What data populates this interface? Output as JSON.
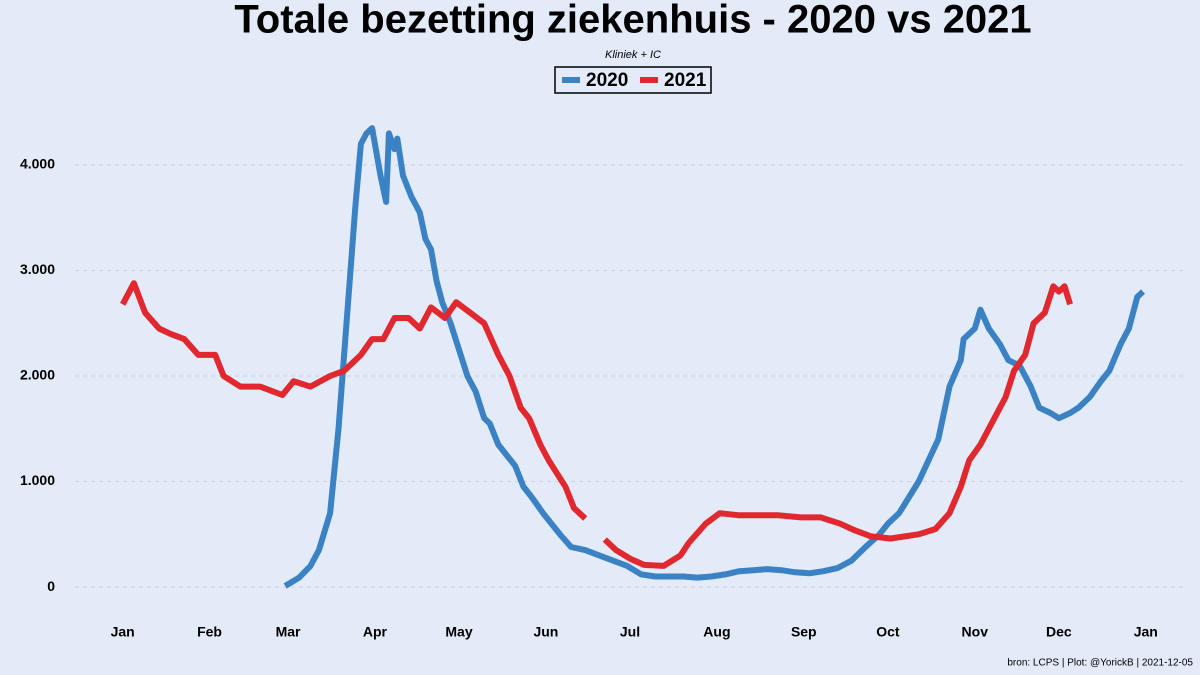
{
  "chart_data": {
    "type": "line",
    "title": "Totale bezetting ziekenhuis - 2020 vs 2021",
    "subtitle": "Kliniek + IC",
    "caption": "bron: LCPS  | Plot: @YorickB |  2021-12-05",
    "legend": "top",
    "grid": true,
    "xlim": [
      -17,
      379
    ],
    "xticks": [
      {
        "value": 0,
        "label": "Jan"
      },
      {
        "value": 31,
        "label": "Feb"
      },
      {
        "value": 59,
        "label": "Mar"
      },
      {
        "value": 90,
        "label": "Apr"
      },
      {
        "value": 120,
        "label": "May"
      },
      {
        "value": 151,
        "label": "Jun"
      },
      {
        "value": 181,
        "label": "Jul"
      },
      {
        "value": 212,
        "label": "Aug"
      },
      {
        "value": 243,
        "label": "Sep"
      },
      {
        "value": 273,
        "label": "Oct"
      },
      {
        "value": 304,
        "label": "Nov"
      },
      {
        "value": 334,
        "label": "Dec"
      },
      {
        "value": 365,
        "label": "Jan"
      }
    ],
    "ylim": [
      -300,
      4600
    ],
    "yticks": [
      0,
      {
        "value": 1000,
        "label": "1.000"
      },
      {
        "value": 2000,
        "label": "2.000"
      },
      {
        "value": 3000,
        "label": "3.000"
      },
      {
        "value": 4000,
        "label": "4.000"
      }
    ],
    "series": [
      {
        "name": "2020",
        "color": "#3b82c4",
        "x": [
          58,
          63,
          67,
          70,
          74,
          77,
          79,
          81,
          83,
          85,
          87,
          89,
          92,
          94,
          95,
          97,
          98,
          100,
          103,
          106,
          108,
          110,
          112,
          114,
          117,
          120,
          123,
          126,
          129,
          131,
          134,
          137,
          140,
          143,
          146,
          150,
          153,
          156,
          160,
          165,
          170,
          175,
          180,
          185,
          190,
          195,
          200,
          205,
          210,
          215,
          220,
          225,
          230,
          235,
          240,
          245,
          250,
          255,
          260,
          265,
          270,
          273,
          277,
          284,
          291,
          295,
          299,
          300,
          304,
          306,
          309,
          313,
          316,
          320,
          324,
          327,
          331,
          334,
          338,
          341,
          345,
          349,
          352,
          356,
          359,
          362,
          364
        ],
        "values": [
          10,
          90,
          200,
          350,
          700,
          1500,
          2200,
          2900,
          3600,
          4200,
          4300,
          4350,
          3900,
          3650,
          4300,
          4150,
          4250,
          3900,
          3700,
          3550,
          3300,
          3200,
          2900,
          2700,
          2500,
          2250,
          2000,
          1850,
          1600,
          1550,
          1350,
          1250,
          1150,
          950,
          850,
          700,
          600,
          500,
          380,
          350,
          300,
          250,
          200,
          120,
          100,
          100,
          100,
          90,
          100,
          120,
          150,
          160,
          170,
          160,
          140,
          130,
          150,
          180,
          250,
          380,
          500,
          600,
          700,
          1000,
          1400,
          1900,
          2150,
          2350,
          2450,
          2630,
          2450,
          2300,
          2150,
          2100,
          1900,
          1700,
          1650,
          1600,
          1650,
          1700,
          1800,
          1950,
          2050,
          2300,
          2450,
          2750,
          2800
        ]
      },
      {
        "name": "2021",
        "color": "#e0282e",
        "x": [
          0,
          4,
          8,
          13,
          17,
          22,
          27,
          33,
          36,
          42,
          49,
          57,
          61,
          67,
          74,
          79,
          85,
          89,
          93,
          97,
          102,
          106,
          110,
          115,
          119,
          124,
          129,
          134,
          138,
          142,
          145,
          149,
          152,
          158,
          161,
          165,
          168,
          172,
          176,
          181,
          186,
          193,
          199,
          202,
          208,
          213,
          220,
          227,
          234,
          242,
          249,
          256,
          261,
          267,
          274,
          279,
          284,
          290,
          295,
          299,
          302,
          306,
          311,
          315,
          318,
          322,
          325,
          329,
          332,
          334,
          336,
          338
        ],
        "values": [
          2680,
          2880,
          2600,
          2450,
          2400,
          2350,
          2200,
          2200,
          2000,
          1900,
          1900,
          1820,
          1950,
          1900,
          2000,
          2050,
          2200,
          2350,
          2350,
          2550,
          2550,
          2450,
          2650,
          2550,
          2700,
          2600,
          2500,
          2200,
          2000,
          1700,
          1600,
          1350,
          1200,
          950,
          750,
          650,
          null,
          450,
          350,
          270,
          210,
          200,
          300,
          420,
          600,
          700,
          680,
          680,
          680,
          660,
          660,
          600,
          540,
          480,
          460,
          480,
          500,
          550,
          700,
          950,
          1200,
          1350,
          1600,
          1800,
          2050,
          2200,
          2500,
          2600,
          2850,
          2800,
          2850,
          2680
        ]
      }
    ]
  }
}
